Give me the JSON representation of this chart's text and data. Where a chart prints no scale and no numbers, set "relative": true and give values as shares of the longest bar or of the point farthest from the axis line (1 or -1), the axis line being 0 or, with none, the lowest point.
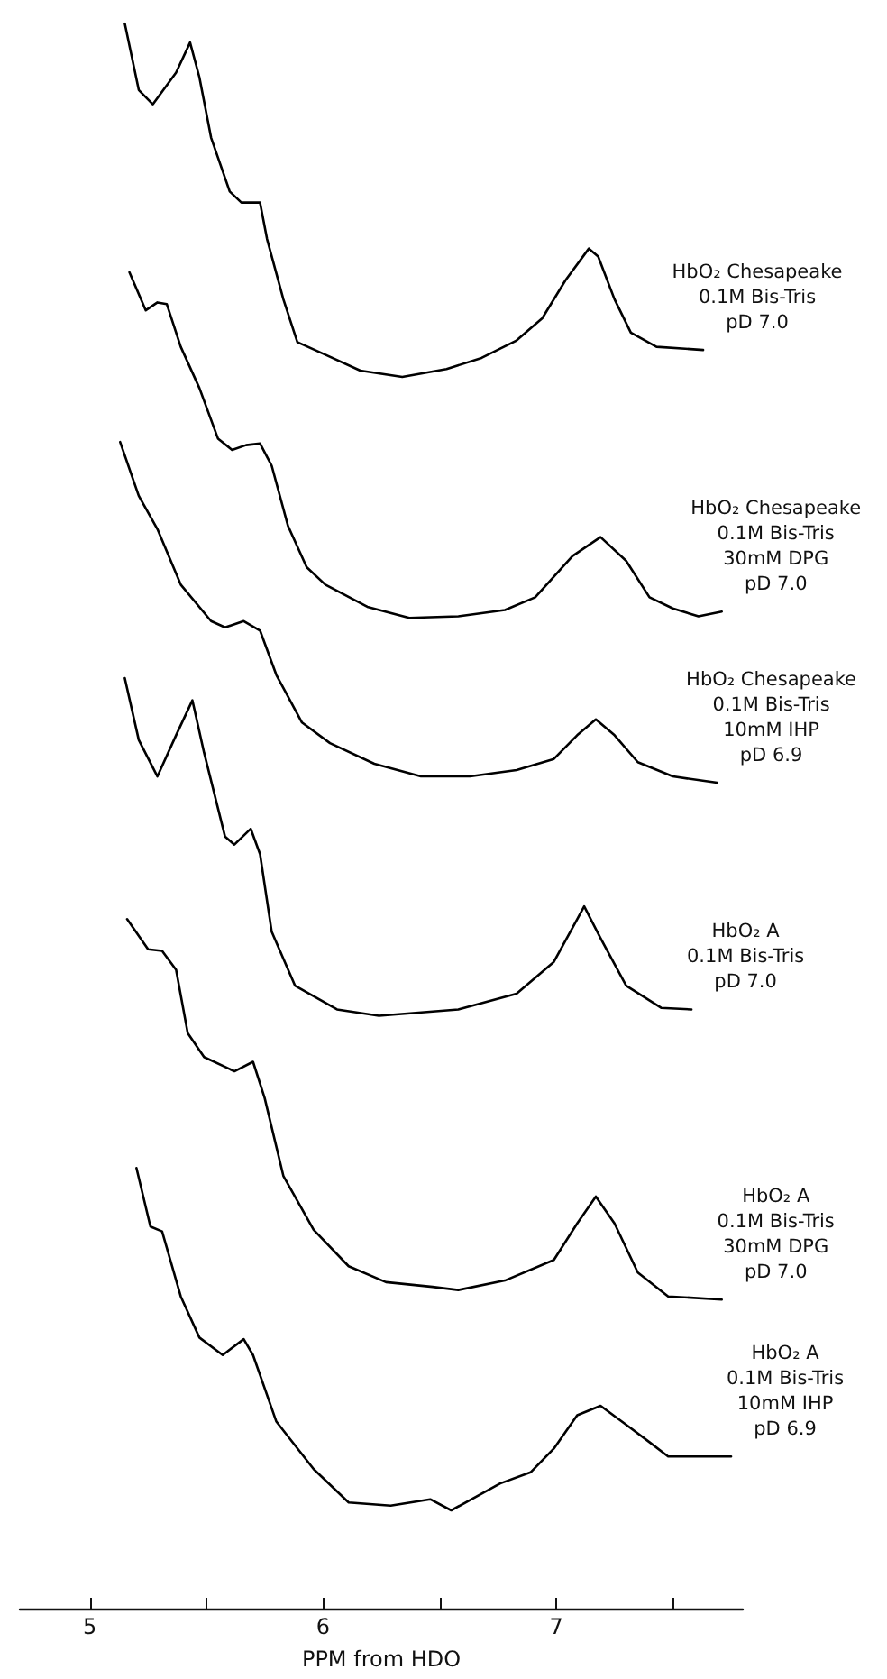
{
  "chart_data": {
    "type": "line",
    "relative": true,
    "xlabel": "PPM from HDO",
    "xlim": [
      4.7,
      7.8
    ],
    "xticks": [
      5,
      {
        "value": 5.5,
        "label": null
      },
      6,
      {
        "value": 6.5,
        "label": null
      },
      7,
      {
        "value": 7.5,
        "label": null
      }
    ],
    "grid": false,
    "legend": false,
    "marker": "none",
    "line_style": "solid",
    "series": [
      {
        "name": "HbO₂ Chesapeake\n0.1M Bis-Tris\npD 7.0",
        "color": "#000000",
        "x": [
          5.15,
          5.21,
          5.27,
          5.37,
          5.43,
          5.47,
          5.52,
          5.6,
          5.65,
          5.73,
          5.76,
          5.83,
          5.89,
          6.01,
          6.16,
          6.34,
          6.53,
          6.68,
          6.83,
          6.94,
          7.04,
          7.14,
          7.18,
          7.25,
          7.32,
          7.43,
          7.63
        ],
        "values": [
          1.0,
          0.958,
          0.949,
          0.969,
          0.988,
          0.966,
          0.928,
          0.894,
          0.887,
          0.887,
          0.864,
          0.826,
          0.799,
          0.791,
          0.781,
          0.777,
          0.782,
          0.789,
          0.8,
          0.814,
          0.838,
          0.858,
          0.853,
          0.826,
          0.805,
          0.796,
          0.794
        ]
      },
      {
        "name": "HbO₂ Chesapeake\n0.1M Bis-Tris\n30mM DPG\npD 7.0",
        "color": "#000000",
        "x": [
          5.17,
          5.24,
          5.29,
          5.33,
          5.39,
          5.47,
          5.55,
          5.61,
          5.67,
          5.73,
          5.78,
          5.85,
          5.93,
          6.01,
          6.19,
          6.37,
          6.58,
          6.78,
          6.91,
          7.07,
          7.19,
          7.3,
          7.4,
          7.5,
          7.61,
          7.71
        ],
        "values": [
          0.843,
          0.819,
          0.824,
          0.823,
          0.796,
          0.77,
          0.738,
          0.731,
          0.734,
          0.735,
          0.721,
          0.683,
          0.657,
          0.646,
          0.632,
          0.625,
          0.626,
          0.63,
          0.638,
          0.664,
          0.676,
          0.661,
          0.638,
          0.631,
          0.626,
          0.629
        ]
      },
      {
        "name": "HbO₂ Chesapeake\n0.1M Bis-Tris\n10mM IHP\npD 6.9",
        "color": "#000000",
        "x": [
          5.13,
          5.21,
          5.29,
          5.39,
          5.52,
          5.58,
          5.66,
          5.73,
          5.8,
          5.91,
          6.03,
          6.22,
          6.42,
          6.63,
          6.83,
          6.99,
          7.09,
          7.17,
          7.25,
          7.35,
          7.5,
          7.69
        ],
        "values": [
          0.736,
          0.702,
          0.681,
          0.646,
          0.623,
          0.619,
          0.623,
          0.617,
          0.589,
          0.559,
          0.546,
          0.533,
          0.525,
          0.525,
          0.529,
          0.536,
          0.551,
          0.561,
          0.551,
          0.534,
          0.525,
          0.521
        ]
      },
      {
        "name": "HbO₂ A\n0.1M Bis-Tris\npD 7.0",
        "color": "#000000",
        "x": [
          5.15,
          5.21,
          5.29,
          5.37,
          5.44,
          5.49,
          5.58,
          5.62,
          5.69,
          5.73,
          5.78,
          5.88,
          6.06,
          6.24,
          6.58,
          6.83,
          6.99,
          7.12,
          7.19,
          7.3,
          7.45,
          7.58
        ],
        "values": [
          0.587,
          0.548,
          0.525,
          0.551,
          0.573,
          0.54,
          0.487,
          0.482,
          0.492,
          0.476,
          0.427,
          0.393,
          0.378,
          0.374,
          0.378,
          0.388,
          0.408,
          0.443,
          0.423,
          0.393,
          0.379,
          0.378
        ]
      },
      {
        "name": "HbO₂ A\n0.1M Bis-Tris\n30mM DPG\npD 7.0",
        "color": "#000000",
        "x": [
          5.16,
          5.25,
          5.31,
          5.37,
          5.42,
          5.49,
          5.62,
          5.7,
          5.75,
          5.83,
          5.96,
          6.11,
          6.27,
          6.47,
          6.58,
          6.78,
          6.99,
          7.09,
          7.17,
          7.25,
          7.35,
          7.48,
          7.71
        ],
        "values": [
          0.435,
          0.416,
          0.415,
          0.403,
          0.363,
          0.348,
          0.339,
          0.345,
          0.322,
          0.273,
          0.239,
          0.216,
          0.206,
          0.203,
          0.201,
          0.207,
          0.22,
          0.243,
          0.26,
          0.243,
          0.212,
          0.197,
          0.195
        ]
      },
      {
        "name": "HbO₂ A\n0.1M Bis-Tris\n10mM IHP\npD 6.9",
        "color": "#000000",
        "x": [
          5.2,
          5.26,
          5.31,
          5.39,
          5.47,
          5.57,
          5.66,
          5.7,
          5.8,
          5.96,
          6.11,
          6.29,
          6.46,
          6.55,
          6.76,
          6.89,
          6.99,
          7.09,
          7.19,
          7.3,
          7.4,
          7.48,
          7.58,
          7.75
        ],
        "values": [
          0.278,
          0.241,
          0.238,
          0.197,
          0.171,
          0.16,
          0.17,
          0.16,
          0.118,
          0.088,
          0.067,
          0.065,
          0.069,
          0.062,
          0.079,
          0.086,
          0.101,
          0.122,
          0.128,
          0.116,
          0.105,
          0.096,
          0.096,
          0.096
        ]
      }
    ]
  }
}
